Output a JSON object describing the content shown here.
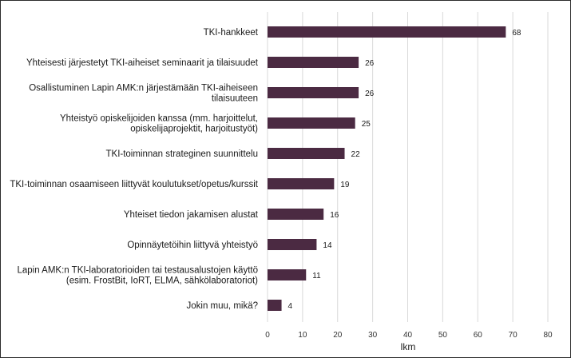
{
  "chart_data": {
    "type": "bar",
    "orientation": "horizontal",
    "title": "",
    "xlabel": "lkm",
    "ylabel": "",
    "xlim": [
      0,
      80
    ],
    "xticks": [
      0,
      10,
      20,
      30,
      40,
      50,
      60,
      70,
      80
    ],
    "grid": true,
    "bar_color": "#4b2a42",
    "categories": [
      [
        "TKI-hankkeet"
      ],
      [
        "Yhteisesti järjestetyt TKI-aiheiset seminaarit ja tilaisuudet"
      ],
      [
        "Osallistuminen Lapin AMK:n järjestämään TKI-aiheiseen",
        "tilaisuuteen"
      ],
      [
        "Yhteistyö opiskelijoiden kanssa (mm. harjoittelut,",
        "opiskelijaprojektit, harjoitustyöt)"
      ],
      [
        "TKI-toiminnan strateginen suunnittelu"
      ],
      [
        "TKI-toiminnan osaamiseen liittyvät koulutukset/opetus/kurssit"
      ],
      [
        "Yhteiset tiedon jakamisen alustat"
      ],
      [
        "Opinnäytetöihin liittyvä yhteistyö"
      ],
      [
        "Lapin AMK:n TKI-laboratorioiden tai testausalustojen käyttö",
        "(esim. FrostBit, IoRT, ELMA, sähkölaboratoriot)"
      ],
      [
        "Jokin muu, mikä?"
      ]
    ],
    "values": [
      68,
      26,
      26,
      25,
      22,
      19,
      16,
      14,
      11,
      4
    ]
  }
}
